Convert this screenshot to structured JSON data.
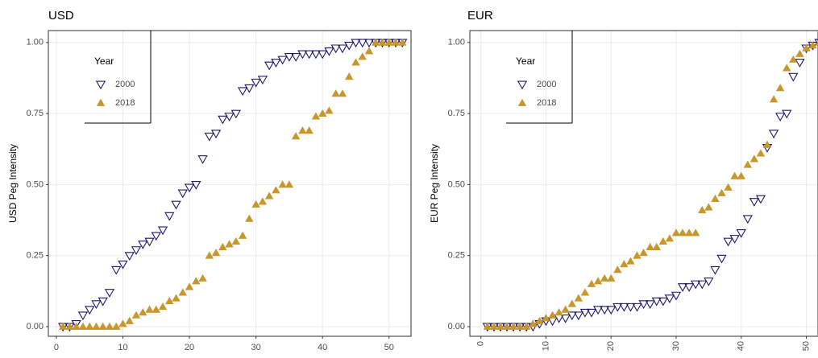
{
  "chart_data": [
    {
      "type": "scatter",
      "title": "USD",
      "y_label": "USD Peg Intensity",
      "x": [
        1,
        2,
        3,
        4,
        5,
        6,
        7,
        8,
        9,
        10,
        11,
        12,
        13,
        14,
        15,
        16,
        17,
        18,
        19,
        20,
        21,
        22,
        23,
        24,
        25,
        26,
        27,
        28,
        29,
        30,
        31,
        32,
        33,
        34,
        35,
        36,
        37,
        38,
        39,
        40,
        41,
        42,
        43,
        44,
        45,
        46,
        47,
        48,
        49,
        50,
        51,
        52
      ],
      "series": [
        {
          "name": "2000",
          "color": "#1f1a6b",
          "marker": "triangle-down-open",
          "values": [
            0,
            0,
            0.01,
            0.04,
            0.06,
            0.08,
            0.09,
            0.12,
            0.2,
            0.22,
            0.25,
            0.27,
            0.29,
            0.3,
            0.32,
            0.34,
            0.39,
            0.43,
            0.47,
            0.49,
            0.5,
            0.59,
            0.67,
            0.68,
            0.73,
            0.74,
            0.75,
            0.83,
            0.84,
            0.86,
            0.87,
            0.92,
            0.93,
            0.94,
            0.95,
            0.95,
            0.96,
            0.96,
            0.96,
            0.96,
            0.97,
            0.98,
            0.98,
            0.99,
            1,
            1,
            1,
            1,
            1,
            1,
            1,
            1
          ]
        },
        {
          "name": "2018",
          "color": "#c9962a",
          "marker": "triangle-up",
          "values": [
            0,
            0,
            0,
            0,
            0,
            0,
            0,
            0,
            0,
            0.01,
            0.02,
            0.04,
            0.05,
            0.06,
            0.06,
            0.07,
            0.09,
            0.1,
            0.12,
            0.14,
            0.16,
            0.17,
            0.25,
            0.26,
            0.28,
            0.29,
            0.3,
            0.32,
            0.38,
            0.43,
            0.44,
            0.46,
            0.48,
            0.5,
            0.5,
            0.67,
            0.69,
            0.69,
            0.74,
            0.75,
            0.76,
            0.82,
            0.82,
            0.88,
            0.93,
            0.95,
            0.97,
            1,
            1,
            1,
            1,
            1
          ]
        }
      ],
      "legend_title": "Year",
      "legend": "upper left",
      "grid": true,
      "xtick_rotation": 0,
      "xlim": [
        -1.2,
        53.3
      ],
      "xticks": [
        0,
        10,
        20,
        30,
        40,
        50
      ],
      "ylim": [
        -0.034,
        1.042
      ],
      "yticks": [
        {
          "value": 0,
          "label": "0.00"
        },
        {
          "value": 0.25,
          "label": "0.25"
        },
        {
          "value": 0.5,
          "label": "0.50"
        },
        {
          "value": 0.75,
          "label": "0.75"
        },
        {
          "value": 1,
          "label": "1.00"
        }
      ]
    },
    {
      "type": "scatter",
      "title": "EUR",
      "y_label": "EUR Peg Intensity",
      "x": [
        1,
        2,
        3,
        4,
        5,
        6,
        7,
        8,
        9,
        10,
        11,
        12,
        13,
        14,
        15,
        16,
        17,
        18,
        19,
        20,
        21,
        22,
        23,
        24,
        25,
        26,
        27,
        28,
        29,
        30,
        31,
        32,
        33,
        34,
        35,
        36,
        37,
        38,
        39,
        40,
        41,
        42,
        43,
        44,
        45,
        46,
        47,
        48,
        49,
        50,
        51,
        52
      ],
      "series": [
        {
          "name": "2000",
          "color": "#1f1a6b",
          "marker": "triangle-down-open",
          "values": [
            0,
            0,
            0,
            0,
            0,
            0,
            0,
            0,
            0.01,
            0.02,
            0.02,
            0.03,
            0.03,
            0.04,
            0.04,
            0.05,
            0.05,
            0.06,
            0.06,
            0.06,
            0.07,
            0.07,
            0.07,
            0.07,
            0.08,
            0.08,
            0.09,
            0.09,
            0.1,
            0.11,
            0.14,
            0.14,
            0.15,
            0.15,
            0.16,
            0.2,
            0.24,
            0.3,
            0.31,
            0.33,
            0.38,
            0.44,
            0.45,
            0.63,
            0.68,
            0.74,
            0.75,
            0.88,
            0.93,
            0.98,
            0.99,
            1
          ]
        },
        {
          "name": "2018",
          "color": "#c9962a",
          "marker": "triangle-up",
          "values": [
            0,
            0,
            0,
            0,
            0,
            0,
            0,
            0.01,
            0.02,
            0.03,
            0.04,
            0.05,
            0.06,
            0.08,
            0.1,
            0.12,
            0.15,
            0.16,
            0.17,
            0.17,
            0.2,
            0.22,
            0.23,
            0.25,
            0.26,
            0.28,
            0.28,
            0.3,
            0.31,
            0.33,
            0.33,
            0.33,
            0.33,
            0.41,
            0.42,
            0.45,
            0.47,
            0.49,
            0.53,
            0.53,
            0.57,
            0.59,
            0.61,
            0.64,
            0.8,
            0.84,
            0.91,
            0.94,
            0.96,
            0.98,
            0.99,
            1
          ]
        }
      ],
      "legend_title": "Year",
      "legend": "upper left",
      "grid": true,
      "xtick_rotation": 90,
      "xlim": [
        -1.7,
        51.8
      ],
      "xticks": [
        0,
        10,
        20,
        30,
        40,
        50
      ],
      "ylim": [
        -0.034,
        1.042
      ],
      "yticks": [
        {
          "value": 0,
          "label": "0.00"
        },
        {
          "value": 0.25,
          "label": "0.25"
        },
        {
          "value": 0.5,
          "label": "0.50"
        },
        {
          "value": 0.75,
          "label": "0.75"
        },
        {
          "value": 1,
          "label": "1.00"
        }
      ]
    }
  ]
}
